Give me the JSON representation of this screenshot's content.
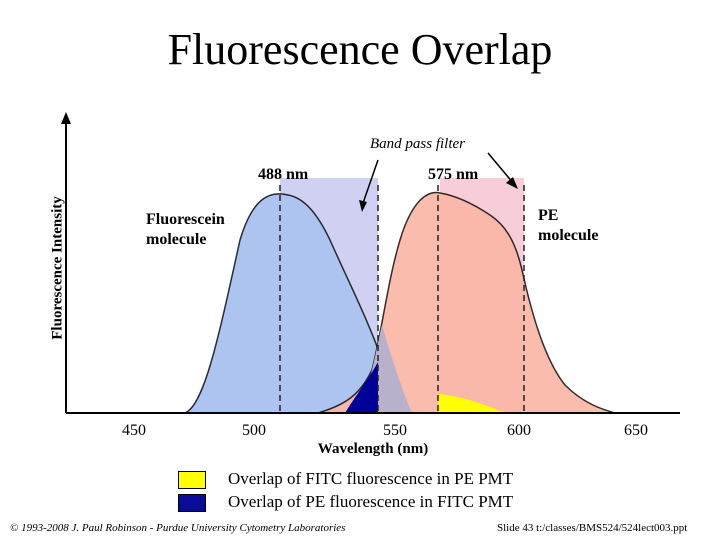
{
  "slide": {
    "title": "Fluorescence Overlap",
    "footer_left": "© 1993-2008 J. Paul Robinson - Purdue University Cytometry Laboratories",
    "footer_right": "Slide 43 t:/classes/BMS524/524lect003.ppt"
  },
  "diagram": {
    "y_axis_label": "Fluorescence Intensity",
    "x_axis_label": "Wavelength (nm)",
    "x_ticks": [
      "450",
      "500",
      "550",
      "600",
      "650"
    ],
    "filter_label": "Band pass filter",
    "peak_labels": [
      "488 nm",
      "575 nm"
    ],
    "fluorescein_label": "Fluorescein molecule",
    "pe_label": "PE molecule",
    "colors": {
      "fluorescein": "#aec4f0",
      "pe": "#f8b6a6",
      "filter_left": "#cfd0f2",
      "filter_right": "#f6cdd8",
      "overlap_fitc_in_pe": "#ffff00",
      "overlap_pe_in_fitc": "#000099",
      "overlap_mid": "#b9b0cc"
    }
  },
  "legend": [
    {
      "label": "Overlap of FITC fluorescence in PE PMT",
      "color": "#ffff00"
    },
    {
      "label": "Overlap of PE fluorescence in FITC PMT",
      "color": "#0b0b9a"
    }
  ]
}
